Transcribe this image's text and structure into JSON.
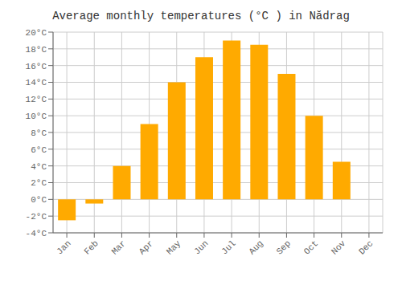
{
  "chart_data": {
    "type": "bar",
    "title": "Average monthly temperatures (°C ) in Nădrag",
    "categories": [
      "Jan",
      "Feb",
      "Mar",
      "Apr",
      "May",
      "Jun",
      "Jul",
      "Aug",
      "Sep",
      "Oct",
      "Nov",
      "Dec"
    ],
    "values": [
      -2.5,
      -0.5,
      4.0,
      9.0,
      14.0,
      17.0,
      19.0,
      18.5,
      15.0,
      10.0,
      4.5,
      0.0
    ],
    "color": "#FFAA00",
    "ylim": [
      -4,
      20
    ],
    "yticks": [
      {
        "value": -4,
        "label": "-4°C"
      },
      {
        "value": -2,
        "label": "-2°C"
      },
      {
        "value": 0,
        "label": "0°C"
      },
      {
        "value": 2,
        "label": "2°C"
      },
      {
        "value": 4,
        "label": "4°C"
      },
      {
        "value": 6,
        "label": "6°C"
      },
      {
        "value": 8,
        "label": "8°C"
      },
      {
        "value": 10,
        "label": "10°C"
      },
      {
        "value": 12,
        "label": "12°C"
      },
      {
        "value": 14,
        "label": "14°C"
      },
      {
        "value": 16,
        "label": "16°C"
      },
      {
        "value": 18,
        "label": "18°C"
      },
      {
        "value": 20,
        "label": "20°C"
      }
    ],
    "grid": true
  }
}
